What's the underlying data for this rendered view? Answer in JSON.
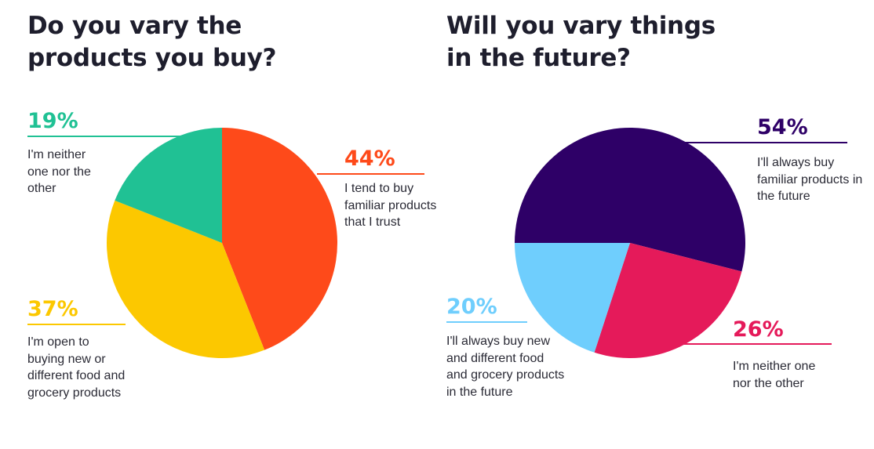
{
  "chart_data": [
    {
      "type": "pie",
      "title": "Do you vary the products you buy?",
      "slices": [
        {
          "label": "I tend to buy familiar products that I trust",
          "value": 44,
          "color": "#fe4a1a"
        },
        {
          "label": "I'm open to buying new or different food and grocery products",
          "value": 37,
          "color": "#fcc800"
        },
        {
          "label": "I'm neither one nor the other",
          "value": 19,
          "color": "#20c194"
        }
      ],
      "labels": [
        {
          "pct": "19%",
          "text": "I'm neither one nor the other",
          "color": "#20c194"
        },
        {
          "pct": "44%",
          "text": "I tend to buy familiar products that I trust",
          "color": "#fe4a1a"
        },
        {
          "pct": "37%",
          "text": "I'm open to buying new or different food and grocery products",
          "color": "#fcc800"
        }
      ]
    },
    {
      "type": "pie",
      "title": "Will you vary things in the future?",
      "slices": [
        {
          "label": "I'll always buy familiar products in the future",
          "value": 54,
          "color": "#2e0067"
        },
        {
          "label": "I'm neither one nor the other",
          "value": 26,
          "color": "#e51a5a"
        },
        {
          "label": "I'll always buy new and different food and grocery products in the future",
          "value": 20,
          "color": "#6fcefd"
        }
      ],
      "labels": [
        {
          "pct": "54%",
          "text": "I'll always buy familiar products in the future",
          "color": "#2e0067"
        },
        {
          "pct": "20%",
          "text": "I'll always buy new and different food and grocery products in the future",
          "color": "#6fcefd"
        },
        {
          "pct": "26%",
          "text": "I'm neither one nor the other",
          "color": "#e51a5a"
        }
      ]
    }
  ]
}
